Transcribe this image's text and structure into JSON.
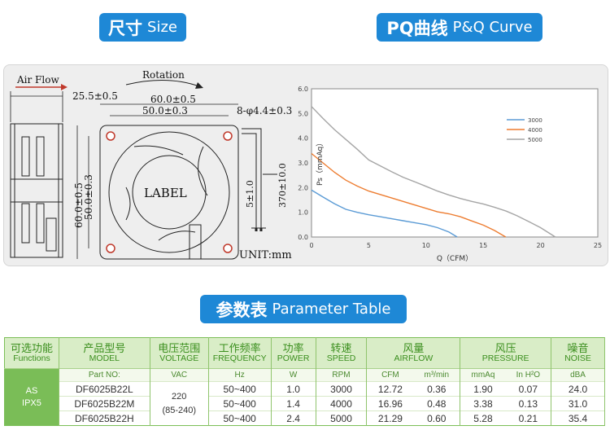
{
  "headers": {
    "size": {
      "zh": "尺寸",
      "en": "Size"
    },
    "pq": {
      "zh": "PQ曲线",
      "en": "P&Q Curve"
    },
    "param": {
      "zh": "参数表",
      "en": "Parameter Table"
    }
  },
  "drawing": {
    "air_flow": "Air Flow",
    "rotation": "Rotation",
    "depth": "25.5±0.5",
    "outer_width": "60.0±0.5",
    "hole_width": "50.0±0.3",
    "outer_height": "60.0±0.5",
    "hole_height": "50.0±0.3",
    "holes": "8-φ4.4±0.3",
    "label": "LABEL",
    "lead_strip": "5±1.0",
    "lead_length": "370±10.0",
    "unit": "UNIT:mm"
  },
  "chart_data": {
    "type": "line",
    "xlabel": "Q（CFM）",
    "ylabel": "Ps（mmAq）",
    "xlim": [
      0,
      25
    ],
    "ylim": [
      0,
      6
    ],
    "x_ticks": [
      "0",
      "5",
      "10",
      "15",
      "20",
      "25"
    ],
    "y_ticks": [
      "0.0",
      "1.0",
      "2.0",
      "3.0",
      "4.0",
      "5.0",
      "6.0"
    ],
    "grid": false,
    "legend_position": "top-right",
    "series": [
      {
        "name": "3000",
        "color": "#5b9bd5",
        "x": [
          0,
          1,
          2,
          3,
          4,
          5,
          6,
          7,
          8,
          9,
          10,
          11,
          12,
          12.72
        ],
        "y": [
          1.9,
          1.62,
          1.35,
          1.12,
          1.0,
          0.9,
          0.82,
          0.74,
          0.66,
          0.58,
          0.5,
          0.38,
          0.2,
          0.0
        ]
      },
      {
        "name": "4000",
        "color": "#ed7d31",
        "x": [
          0,
          1,
          2,
          3,
          4,
          5,
          6,
          7,
          8,
          9,
          10,
          11,
          12,
          13,
          14,
          15,
          16,
          16.96
        ],
        "y": [
          3.38,
          3.0,
          2.62,
          2.3,
          2.06,
          1.86,
          1.72,
          1.58,
          1.44,
          1.3,
          1.16,
          1.02,
          0.94,
          0.82,
          0.65,
          0.48,
          0.26,
          0.0
        ]
      },
      {
        "name": "5000",
        "color": "#a5a5a5",
        "x": [
          0,
          1,
          2,
          3,
          4,
          5,
          6,
          7,
          8,
          9,
          10,
          11,
          12,
          13,
          14,
          15,
          16,
          17,
          18,
          19,
          20,
          21.29
        ],
        "y": [
          5.28,
          4.8,
          4.35,
          3.95,
          3.55,
          3.12,
          2.88,
          2.64,
          2.42,
          2.24,
          2.05,
          1.86,
          1.7,
          1.56,
          1.44,
          1.34,
          1.2,
          1.05,
          0.85,
          0.62,
          0.38,
          0.0
        ]
      }
    ]
  },
  "table": {
    "columns": [
      {
        "zh": "可选功能",
        "en": "Functions"
      },
      {
        "zh": "产品型号",
        "en": "MODEL"
      },
      {
        "zh": "电压范围",
        "en": "VOLTAGE"
      },
      {
        "zh": "工作频率",
        "en": "FREQUENCY"
      },
      {
        "zh": "功率",
        "en": "POWER"
      },
      {
        "zh": "转速",
        "en": "SPEED"
      },
      {
        "zh": "风量",
        "en": "AIRFLOW"
      },
      {
        "zh": "风压",
        "en": "PRESSURE"
      },
      {
        "zh": "噪音",
        "en": "NOISE"
      }
    ],
    "units": {
      "model": "Part NO:",
      "voltage": "VAC",
      "frequency": "Hz",
      "power": "W",
      "speed": "RPM",
      "airflow_a": "CFM",
      "airflow_b": "m³/min",
      "pressure_a": "mmAq",
      "pressure_b": "In H²O",
      "noise": "dBA"
    },
    "function": {
      "line1": "AS",
      "line2": "IPX5"
    },
    "voltage": {
      "line1": "220",
      "line2": "(85-240)"
    },
    "rows": [
      {
        "model": "DF6025B22L",
        "frequency": "50~400",
        "power": "1.0",
        "speed": "3000",
        "cfm": "12.72",
        "m3": "0.36",
        "mmaq": "1.90",
        "inh2o": "0.07",
        "noise": "24.0"
      },
      {
        "model": "DF6025B22M",
        "frequency": "50~400",
        "power": "1.4",
        "speed": "4000",
        "cfm": "16.96",
        "m3": "0.48",
        "mmaq": "3.38",
        "inh2o": "0.13",
        "noise": "31.0"
      },
      {
        "model": "DF6025B22H",
        "frequency": "50~400",
        "power": "2.4",
        "speed": "5000",
        "cfm": "21.29",
        "m3": "0.60",
        "mmaq": "5.28",
        "inh2o": "0.21",
        "noise": "35.4"
      }
    ]
  }
}
